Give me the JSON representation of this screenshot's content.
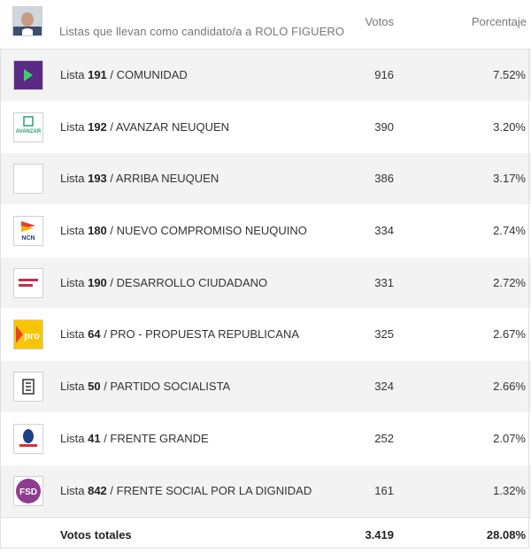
{
  "header": {
    "title": "Listas que llevan como candidato/a a ROLO FIGUERO",
    "votes_col": "Votos",
    "pct_col": "Porcentaje"
  },
  "rows": [
    {
      "prefix": "Lista",
      "number": "191",
      "name": "/ COMUNIDAD",
      "votes": "916",
      "pct": "7.52%",
      "logo": "comunidad-logo",
      "logo_color": "#5b2a86"
    },
    {
      "prefix": "Lista",
      "number": "192",
      "name": "/ AVANZAR NEUQUEN",
      "votes": "390",
      "pct": "3.20%",
      "logo": "avanzar-neuquen-logo",
      "logo_color": "#2e9c7a",
      "logo_text": "AVANZAR"
    },
    {
      "prefix": "Lista",
      "number": "193",
      "name": "/ ARRIBA NEUQUEN",
      "votes": "386",
      "pct": "3.17%",
      "logo": "blank-logo",
      "logo_color": "#ffffff"
    },
    {
      "prefix": "Lista",
      "number": "180",
      "name": "/ NUEVO COMPROMISO NEUQUINO",
      "votes": "334",
      "pct": "2.74%",
      "logo": "ncn-logo",
      "logo_color": "#1a3e7a",
      "logo_text": "NCN"
    },
    {
      "prefix": "Lista",
      "number": "190",
      "name": "/ DESARROLLO CIUDADANO",
      "votes": "331",
      "pct": "2.72%",
      "logo": "desarrollo-ciudadano-logo",
      "logo_color": "#c0314a"
    },
    {
      "prefix": "Lista",
      "number": "64",
      "name": "/ PRO - PROPUESTA REPUBLICANA",
      "votes": "325",
      "pct": "2.67%",
      "logo": "pro-logo",
      "logo_color": "#f7c600",
      "logo_text": "pro"
    },
    {
      "prefix": "Lista",
      "number": "50",
      "name": "/ PARTIDO SOCIALISTA",
      "votes": "324",
      "pct": "2.66%",
      "logo": "socialista-logo",
      "logo_color": "#333333"
    },
    {
      "prefix": "Lista",
      "number": "41",
      "name": "/ FRENTE GRANDE",
      "votes": "252",
      "pct": "2.07%",
      "logo": "frente-grande-logo",
      "logo_color": "#1f3f8c"
    },
    {
      "prefix": "Lista",
      "number": "842",
      "name": "/ FRENTE SOCIAL POR LA DIGNIDAD",
      "votes": "161",
      "pct": "1.32%",
      "logo": "fsd-logo",
      "logo_color": "#8e3c8e",
      "logo_text": "FSD"
    }
  ],
  "total": {
    "label": "Votos totales",
    "votes": "3.419",
    "pct": "28.08%"
  }
}
